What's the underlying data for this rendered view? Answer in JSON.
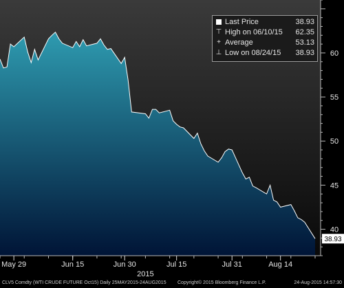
{
  "chart_data": {
    "type": "area",
    "title": "",
    "xlabel": "2015",
    "ylabel": "",
    "ylim": [
      37,
      66
    ],
    "yticks": [
      40,
      45,
      50,
      55,
      60
    ],
    "xticks": [
      "May 29",
      "Jun 15",
      "Jun 30",
      "Jul 15",
      "Jul 31",
      "Aug 14"
    ],
    "xtick_dates": [
      "2015-05-29",
      "2015-06-15",
      "2015-06-30",
      "2015-07-15",
      "2015-07-31",
      "2015-08-14"
    ],
    "x": [
      "2015-05-25",
      "2015-05-26",
      "2015-05-27",
      "2015-05-28",
      "2015-05-29",
      "2015-06-01",
      "2015-06-02",
      "2015-06-03",
      "2015-06-04",
      "2015-06-05",
      "2015-06-08",
      "2015-06-09",
      "2015-06-10",
      "2015-06-11",
      "2015-06-12",
      "2015-06-15",
      "2015-06-16",
      "2015-06-17",
      "2015-06-18",
      "2015-06-19",
      "2015-06-22",
      "2015-06-23",
      "2015-06-24",
      "2015-06-25",
      "2015-06-26",
      "2015-06-29",
      "2015-06-30",
      "2015-07-01",
      "2015-07-02",
      "2015-07-06",
      "2015-07-07",
      "2015-07-08",
      "2015-07-09",
      "2015-07-10",
      "2015-07-13",
      "2015-07-14",
      "2015-07-15",
      "2015-07-16",
      "2015-07-17",
      "2015-07-20",
      "2015-07-21",
      "2015-07-22",
      "2015-07-23",
      "2015-07-24",
      "2015-07-27",
      "2015-07-28",
      "2015-07-29",
      "2015-07-30",
      "2015-07-31",
      "2015-08-03",
      "2015-08-04",
      "2015-08-05",
      "2015-08-06",
      "2015-08-07",
      "2015-08-10",
      "2015-08-11",
      "2015-08-12",
      "2015-08-13",
      "2015-08-14",
      "2015-08-17",
      "2015-08-18",
      "2015-08-19",
      "2015-08-20",
      "2015-08-21",
      "2015-08-24"
    ],
    "series": [
      {
        "values": [
          59.3,
          58.3,
          58.4,
          61.0,
          60.7,
          61.8,
          60.1,
          58.9,
          60.4,
          59.2,
          61.6,
          62.0,
          62.35,
          61.6,
          61.1,
          60.6,
          61.3,
          60.7,
          61.5,
          60.8,
          61.1,
          61.6,
          60.9,
          60.4,
          60.5,
          58.8,
          59.5,
          56.9,
          53.3,
          53.1,
          52.6,
          53.6,
          53.6,
          53.2,
          53.5,
          52.3,
          51.9,
          51.6,
          51.5,
          50.3,
          50.9,
          49.7,
          48.9,
          48.3,
          47.6,
          48.1,
          48.8,
          49.1,
          49.0,
          46.4,
          45.7,
          45.9,
          44.9,
          44.7,
          44.0,
          45.0,
          43.3,
          43.1,
          42.5,
          42.8,
          42.1,
          41.3,
          41.1,
          40.8,
          38.93
        ]
      }
    ],
    "legend": {
      "placement": "top-right",
      "entries": [
        {
          "symbol": "■",
          "label": "Last Price",
          "value": "38.93"
        },
        {
          "symbol": "⊤",
          "label": "High on 06/10/15",
          "value": "62.35"
        },
        {
          "symbol": "+",
          "label": "Average",
          "value": "53.13"
        },
        {
          "symbol": "⊥",
          "label": "Low on 08/24/15",
          "value": "38.93"
        }
      ]
    },
    "last_price_label": "38.93",
    "grid": false
  },
  "footer": {
    "security": "CLV5 Comdty (WTI CRUDE FUTURE  Oct15)  Daily 25MAY2015-24AUG2015",
    "copyright": "Copyright© 2015 Bloomberg Finance L.P.",
    "timestamp": "24-Aug-2015 14:57:30"
  },
  "colors": {
    "area_top": "#2e9bb0",
    "area_bottom": "#001436",
    "line": "#ffffff",
    "background_top": "#3a3a3a",
    "background_bottom": "#050505"
  }
}
